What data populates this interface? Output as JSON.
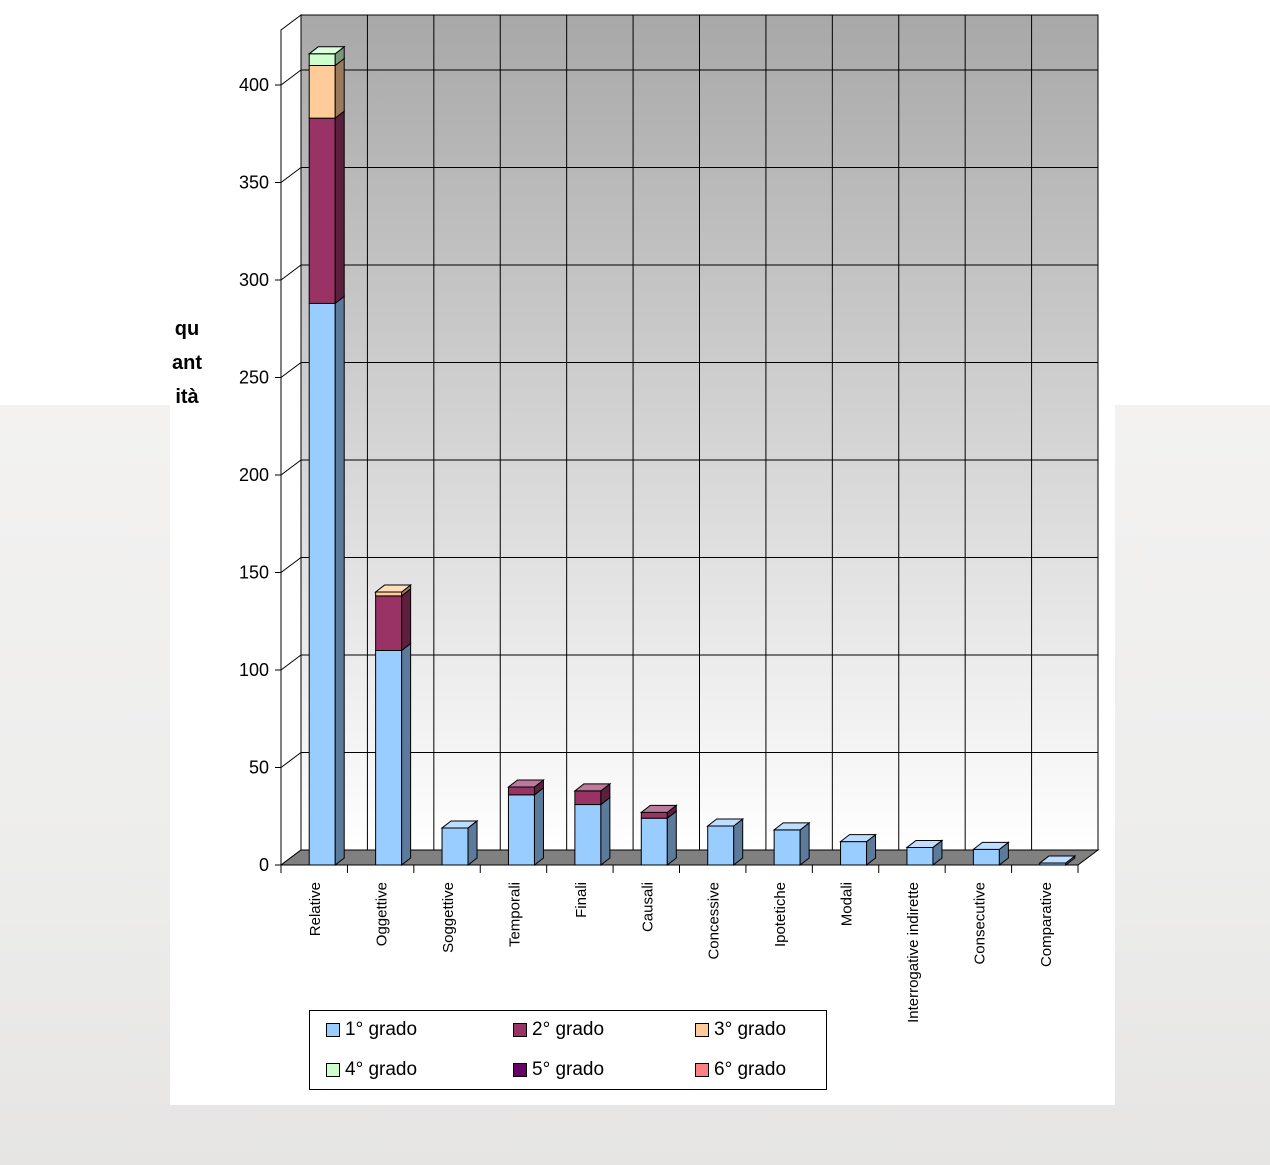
{
  "chart_data": {
    "type": "bar",
    "stacked": true,
    "three_d": true,
    "categories": [
      "Relative",
      "Oggettive",
      "Soggettive",
      "Temporali",
      "Finali",
      "Causali",
      "Concessive",
      "Ipotetiche",
      "Modali",
      "Interrogative indirette",
      "Consecutive",
      "Comparative"
    ],
    "series": [
      {
        "name": "1° grado",
        "color": "#99ccff",
        "values": [
          288,
          110,
          19,
          36,
          31,
          24,
          20,
          18,
          12,
          9,
          8,
          1
        ]
      },
      {
        "name": "2° grado",
        "color": "#993366",
        "values": [
          95,
          28,
          0,
          4,
          7,
          3,
          0,
          0,
          0,
          0,
          0,
          0
        ]
      },
      {
        "name": "3° grado",
        "color": "#ffcc99",
        "values": [
          27,
          2,
          0,
          0,
          0,
          0,
          0,
          0,
          0,
          0,
          0,
          0
        ]
      },
      {
        "name": "4° grado",
        "color": "#ccffcc",
        "values": [
          6,
          0,
          0,
          0,
          0,
          0,
          0,
          0,
          0,
          0,
          0,
          0
        ]
      },
      {
        "name": "5° grado",
        "color": "#660066",
        "values": [
          0,
          0,
          0,
          0,
          0,
          0,
          0,
          0,
          0,
          0,
          0,
          0
        ]
      },
      {
        "name": "6° grado",
        "color": "#ff8080",
        "values": [
          0,
          0,
          0,
          0,
          0,
          0,
          0,
          0,
          0,
          0,
          0,
          0
        ]
      }
    ],
    "ylabel": "quantità",
    "xlabel": "",
    "ylim": [
      0,
      400
    ],
    "yticks": [
      0,
      50,
      100,
      150,
      200,
      250,
      300,
      350,
      400
    ],
    "grid": true,
    "legend_position": "bottom",
    "wall_gradient": [
      "#a8a8a8",
      "#ffffff"
    ]
  }
}
